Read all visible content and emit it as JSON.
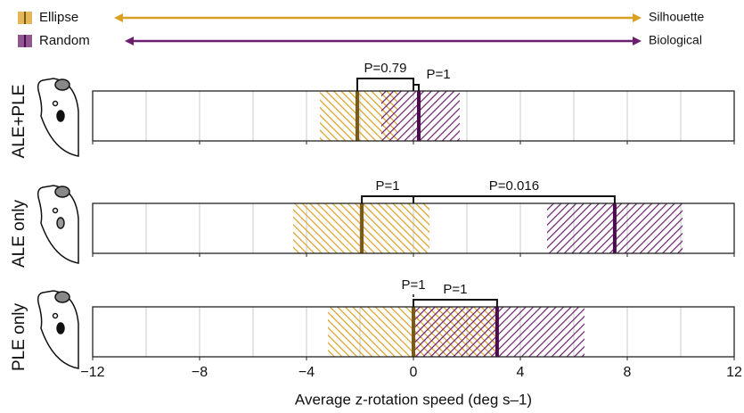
{
  "chart_data": {
    "type": "interval",
    "legend": [
      {
        "name": "Ellipse",
        "color": "#d9a021",
        "arrow_to": "Silhouette"
      },
      {
        "name": "Random",
        "color": "#6b1f6e",
        "arrow_to": "Biological"
      }
    ],
    "xlabel": "Average z-rotation speed (deg s–1)",
    "xlim": [
      -12,
      12
    ],
    "xticks": [
      {
        "value": -12,
        "label": "−12"
      },
      {
        "value": -8,
        "label": "−8"
      },
      {
        "value": -4,
        "label": "−4"
      },
      0,
      4,
      8,
      12
    ],
    "grid": true,
    "panels": [
      {
        "label": "ALE+PLE",
        "series": [
          {
            "low": -3.5,
            "high": -0.6,
            "median": -2.1
          },
          {
            "low": -1.2,
            "high": 1.73,
            "median": 0.2
          }
        ],
        "tests": [
          "P=0.79",
          "P=1"
        ]
      },
      {
        "label": "ALE only",
        "series": [
          {
            "low": -4.5,
            "high": 0.6,
            "median": -1.93
          },
          {
            "low": 5.0,
            "high": 10.07,
            "median": 7.53
          }
        ],
        "tests": [
          "P=1",
          "P=0.016"
        ]
      },
      {
        "label": "PLE only",
        "series": [
          {
            "low": -3.2,
            "high": 3.07,
            "median": 0
          },
          {
            "low": 0,
            "high": 6.4,
            "median": 3.13
          }
        ],
        "tests": [
          "P=1",
          "P=1"
        ]
      }
    ]
  }
}
